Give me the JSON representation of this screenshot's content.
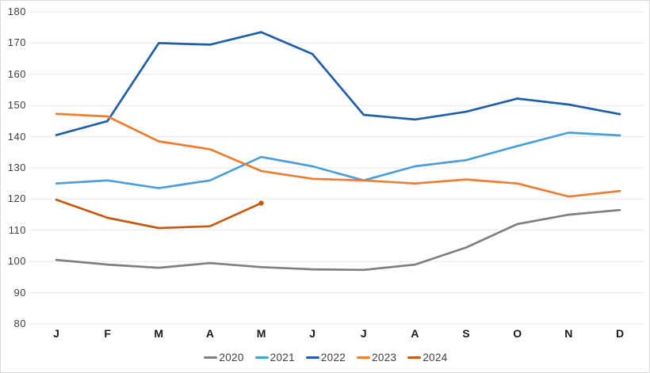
{
  "chart_data": {
    "type": "line",
    "title": "",
    "xlabel": "",
    "ylabel": "",
    "x_labels": [
      "J",
      "F",
      "M",
      "A",
      "M",
      "J",
      "J",
      "A",
      "S",
      "O",
      "N",
      "D"
    ],
    "y_ticks": [
      80,
      90,
      100,
      110,
      120,
      130,
      140,
      150,
      160,
      170,
      180
    ],
    "ylim": [
      80,
      180
    ],
    "grid": "horizontal-only",
    "legend_position": "bottom-center",
    "series": [
      {
        "name": "2020",
        "color": "#7f7f7f",
        "values": [
          100.5,
          99,
          98,
          99.5,
          98.2,
          97.5,
          97.3,
          99,
          104.5,
          112,
          115,
          116.5
        ]
      },
      {
        "name": "2021",
        "color": "#4a9eda",
        "values": [
          125,
          126,
          123.5,
          126,
          133.5,
          130.5,
          126,
          130.5,
          132.5,
          137,
          141.3,
          140.4
        ]
      },
      {
        "name": "2022",
        "color": "#1f5fa8",
        "values": [
          140.5,
          145,
          170,
          169.5,
          173.5,
          166.5,
          147,
          145.5,
          148,
          152.2,
          150.3,
          147.2
        ]
      },
      {
        "name": "2023",
        "color": "#ed7d31",
        "values": [
          147.3,
          146.5,
          138.5,
          136,
          129,
          126.5,
          126,
          125,
          126.3,
          125,
          120.8,
          122.6
        ]
      },
      {
        "name": "2024",
        "color": "#c55a11",
        "values": [
          119.8,
          114,
          110.7,
          111.3,
          118.7,
          null,
          null,
          null,
          null,
          null,
          null,
          null
        ],
        "end_marker": true
      }
    ]
  },
  "colors": {
    "background": "#ffffff",
    "frame_border": "#d9d9d9",
    "grid": "#e9e9e9",
    "tick_label": "#404040",
    "month_label": "#1a1a1a",
    "legend_label": "#404040"
  }
}
